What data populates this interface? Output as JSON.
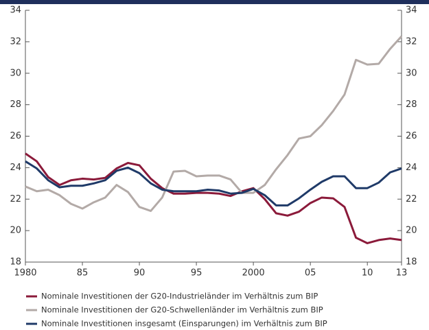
{
  "chart_data": {
    "type": "line",
    "x": [
      1980,
      1981,
      1982,
      1983,
      1984,
      1985,
      1986,
      1987,
      1988,
      1989,
      1990,
      1991,
      1992,
      1993,
      1994,
      1995,
      1996,
      1997,
      1998,
      1999,
      2000,
      2001,
      2002,
      2003,
      2004,
      2005,
      2006,
      2007,
      2008,
      2009,
      2010,
      2011,
      2012,
      2013
    ],
    "xlim": [
      1980,
      2013
    ],
    "xticks": [
      1980,
      {
        "value": 1985,
        "label": "85"
      },
      {
        "value": 1990,
        "label": "90"
      },
      {
        "value": 1995,
        "label": "95"
      },
      2000,
      {
        "value": 2005,
        "label": "05"
      },
      {
        "value": 2010,
        "label": "10"
      },
      {
        "value": 2013,
        "label": "13"
      }
    ],
    "ylim": [
      18,
      34
    ],
    "yticks": [
      18,
      20,
      22,
      24,
      26,
      28,
      30,
      32,
      34
    ],
    "y2lim": [
      18,
      34
    ],
    "y2ticks": [
      18,
      20,
      22,
      24,
      26,
      28,
      30,
      32,
      34
    ],
    "legend": "bottom",
    "series": [
      {
        "name": "Nominale Investitionen der G20-Industrieländer im Verhältnis zum BIP",
        "color": "#8b1a3a",
        "values": [
          24.9,
          24.4,
          23.4,
          22.9,
          23.2,
          23.3,
          23.25,
          23.35,
          23.95,
          24.3,
          24.15,
          23.3,
          22.7,
          22.35,
          22.35,
          22.4,
          22.4,
          22.35,
          22.2,
          22.5,
          22.7,
          22.0,
          21.1,
          20.95,
          21.2,
          21.75,
          22.1,
          22.05,
          21.5,
          19.55,
          19.2,
          19.4,
          19.5,
          19.4
        ]
      },
      {
        "name": "Nominale Investitionen der G20-Schwellenländer im Verhältnis zum BIP",
        "color": "#b3aaa7",
        "values": [
          22.8,
          22.5,
          22.6,
          22.25,
          21.7,
          21.4,
          21.8,
          22.1,
          22.9,
          22.45,
          21.5,
          21.25,
          22.1,
          23.75,
          23.8,
          23.45,
          23.5,
          23.5,
          23.25,
          22.4,
          22.4,
          22.9,
          23.9,
          24.8,
          25.85,
          26.0,
          26.7,
          27.6,
          28.65,
          30.85,
          30.55,
          30.6,
          31.55,
          32.35
        ]
      },
      {
        "name": "Nominale Investitionen insgesamt (Einsparungen) im Verhältnis zum BIP",
        "color": "#1f3a68",
        "values": [
          24.4,
          23.95,
          23.2,
          22.75,
          22.85,
          22.85,
          23.0,
          23.2,
          23.8,
          24.0,
          23.65,
          23.0,
          22.6,
          22.5,
          22.5,
          22.5,
          22.6,
          22.55,
          22.35,
          22.4,
          22.65,
          22.25,
          21.6,
          21.6,
          22.05,
          22.6,
          23.1,
          23.45,
          23.45,
          22.7,
          22.7,
          23.05,
          23.7,
          23.95
        ]
      }
    ]
  }
}
